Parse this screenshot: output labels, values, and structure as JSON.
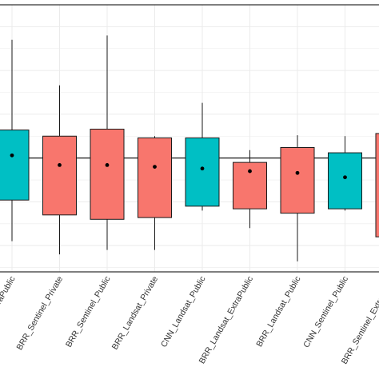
{
  "chart_data": {
    "type": "boxplot",
    "title": "",
    "xlabel": "",
    "ylabel": "",
    "grid": true,
    "legend": "none",
    "ylim": [
      -1.3,
      1.75
    ],
    "reference_line": 0,
    "colors": {
      "public": "#00BFC4",
      "private": "#F8766D",
      "border": "#1a1a1a",
      "grid": "#ebebeb",
      "frame": "#333333"
    },
    "categories": [
      "CNN_Sentinel_ExtraPublic",
      "BRR_Sentinel_Private",
      "BRR_Sentinel_Public",
      "BRR_Landsat_Private",
      "CNN_Landsat_Public",
      "BRR_Landsat_ExtraPublic",
      "BRR_Landsat_Public",
      "CNN_Sentinel_Public",
      "BRR_Sentinel_ExtraPublic"
    ],
    "boxes": [
      {
        "fill": "public",
        "min": -0.95,
        "q1": -0.48,
        "median": 0.03,
        "q3": 0.32,
        "max": 1.35,
        "mean": 0.03
      },
      {
        "fill": "private",
        "min": -1.1,
        "q1": -0.65,
        "median": -0.08,
        "q3": 0.25,
        "max": 0.83,
        "mean": -0.08
      },
      {
        "fill": "private",
        "min": -1.05,
        "q1": -0.7,
        "median": -0.08,
        "q3": 0.33,
        "max": 1.4,
        "mean": -0.08
      },
      {
        "fill": "private",
        "min": -1.05,
        "q1": -0.68,
        "median": -0.1,
        "q3": 0.23,
        "max": 0.25,
        "mean": -0.1
      },
      {
        "fill": "public",
        "min": -0.6,
        "q1": -0.55,
        "median": -0.12,
        "q3": 0.23,
        "max": 0.63,
        "mean": -0.12
      },
      {
        "fill": "private",
        "min": -0.8,
        "q1": -0.58,
        "median": -0.15,
        "q3": -0.05,
        "max": 0.09,
        "mean": -0.15
      },
      {
        "fill": "private",
        "min": -1.18,
        "q1": -0.63,
        "median": -0.17,
        "q3": 0.12,
        "max": 0.26,
        "mean": -0.17
      },
      {
        "fill": "public",
        "min": -0.6,
        "q1": -0.58,
        "median": -0.22,
        "q3": 0.06,
        "max": 0.25,
        "mean": -0.22
      },
      {
        "fill": "private",
        "min": -0.9,
        "q1": -0.9,
        "median": -0.3,
        "q3": 0.28,
        "max": 0.28,
        "mean": -0.3
      }
    ]
  }
}
